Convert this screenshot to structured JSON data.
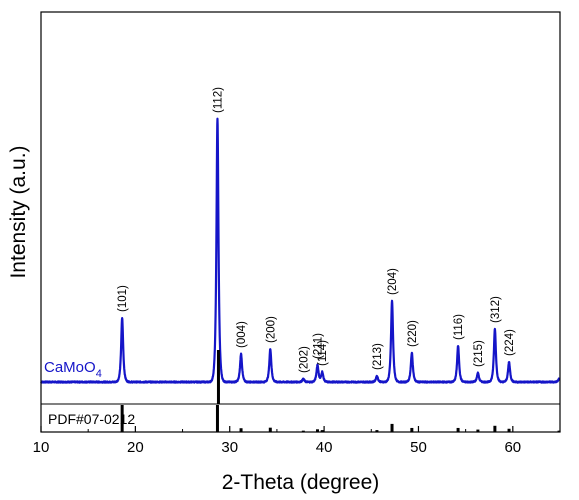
{
  "chart_data": {
    "type": "line",
    "xlabel": "2-Theta (degree)",
    "ylabel": "Intensity (a.u.)",
    "xlim": [
      10,
      65
    ],
    "xticks": [
      10,
      20,
      30,
      40,
      50,
      60
    ],
    "y_ticks_shown": false,
    "grid": false,
    "series": [
      {
        "name": "CaMoO",
        "name_subscript": "4",
        "color": "#1515c8",
        "baseline": 0,
        "peaks": [
          {
            "x": 18.6,
            "y": 64,
            "label": "(101)"
          },
          {
            "x": 28.7,
            "y": 263,
            "label": "(112)"
          },
          {
            "x": 31.2,
            "y": 28,
            "label": "(004)"
          },
          {
            "x": 34.3,
            "y": 33,
            "label": "(200)"
          },
          {
            "x": 37.8,
            "y": 3,
            "label": "(202)"
          },
          {
            "x": 39.3,
            "y": 17,
            "label": "(211)"
          },
          {
            "x": 39.8,
            "y": 10,
            "label": "(114)"
          },
          {
            "x": 45.6,
            "y": 6,
            "label": "(213)"
          },
          {
            "x": 47.2,
            "y": 81,
            "label": "(204)"
          },
          {
            "x": 49.3,
            "y": 29,
            "label": "(220)"
          },
          {
            "x": 54.2,
            "y": 36,
            "label": "(116)"
          },
          {
            "x": 56.3,
            "y": 9,
            "label": "(215)"
          },
          {
            "x": 58.1,
            "y": 53,
            "label": "(312)"
          },
          {
            "x": 59.6,
            "y": 20,
            "label": "(224)"
          },
          {
            "x": 64.9,
            "y": 3,
            "label": ""
          }
        ]
      }
    ],
    "reference": {
      "label": "PDF#07-0212",
      "color": "#000000",
      "lines": [
        {
          "x": 18.6,
          "intensity": 100
        },
        {
          "x": 28.7,
          "intensity": 100
        },
        {
          "x": 31.2,
          "intensity": 14
        },
        {
          "x": 34.3,
          "intensity": 16
        },
        {
          "x": 37.8,
          "intensity": 5
        },
        {
          "x": 39.3,
          "intensity": 10
        },
        {
          "x": 39.8,
          "intensity": 7
        },
        {
          "x": 45.6,
          "intensity": 7
        },
        {
          "x": 47.2,
          "intensity": 30
        },
        {
          "x": 49.3,
          "intensity": 15
        },
        {
          "x": 54.2,
          "intensity": 15
        },
        {
          "x": 56.3,
          "intensity": 9
        },
        {
          "x": 58.1,
          "intensity": 23
        },
        {
          "x": 59.6,
          "intensity": 12
        },
        {
          "x": 64.9,
          "intensity": 5
        }
      ]
    }
  }
}
